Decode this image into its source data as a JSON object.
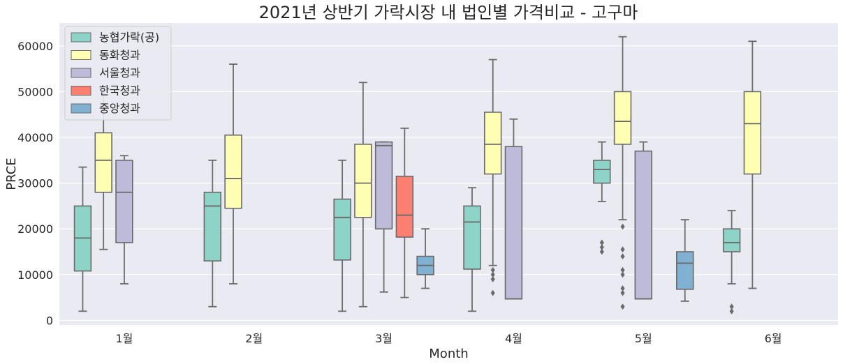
{
  "chart_data": {
    "type": "box",
    "title": "2021년 상반기 가락시장 내 법인별 가격비교 - 고구마",
    "xlabel": "Month",
    "ylabel": "PRCE",
    "categories": [
      "1월",
      "2월",
      "3월",
      "4월",
      "5월",
      "6월"
    ],
    "yticks": [
      0,
      10000,
      20000,
      30000,
      40000,
      50000,
      60000
    ],
    "ylim": [
      -1000,
      65000
    ],
    "grid": true,
    "legend_position": "top-left",
    "colors": {
      "background": "#eaeaf2",
      "grid": "#ffffff",
      "edge": "#6a6a6a"
    },
    "series": [
      {
        "name": "농협가락(공)",
        "color": "#8dd3c7",
        "boxes": [
          {
            "category": "1월",
            "whislo": 2000,
            "q1": 10800,
            "med": 18000,
            "q3": 25000,
            "whishi": 33500,
            "fliers": []
          },
          {
            "category": "2월",
            "whislo": 3000,
            "q1": 13000,
            "med": 25000,
            "q3": 28000,
            "whishi": 35000,
            "fliers": []
          },
          {
            "category": "3월",
            "whislo": 2000,
            "q1": 13200,
            "med": 22500,
            "q3": 26500,
            "whishi": 35000,
            "fliers": []
          },
          {
            "category": "4월",
            "whislo": 2000,
            "q1": 11200,
            "med": 21500,
            "q3": 25000,
            "whishi": 29000,
            "fliers": []
          },
          {
            "category": "5월",
            "whislo": 26000,
            "q1": 30000,
            "med": 33000,
            "q3": 35000,
            "whishi": 39000,
            "fliers": [
              15000,
              16000,
              17000
            ]
          },
          {
            "category": "6월",
            "whislo": 8000,
            "q1": 15000,
            "med": 17000,
            "q3": 20000,
            "whishi": 24000,
            "fliers": [
              2000,
              3000
            ]
          }
        ]
      },
      {
        "name": "동화청과",
        "color": "#ffffb3",
        "boxes": [
          {
            "category": "1월",
            "whislo": 15500,
            "q1": 28000,
            "med": 35000,
            "q3": 41000,
            "whishi": 51000,
            "fliers": []
          },
          {
            "category": "2월",
            "whislo": 8000,
            "q1": 24500,
            "med": 31000,
            "q3": 40500,
            "whishi": 56000,
            "fliers": []
          },
          {
            "category": "3월",
            "whislo": 3000,
            "q1": 22500,
            "med": 30000,
            "q3": 38500,
            "whishi": 52000,
            "fliers": []
          },
          {
            "category": "4월",
            "whislo": 12000,
            "q1": 32000,
            "med": 38500,
            "q3": 45500,
            "whishi": 57000,
            "fliers": [
              6000,
              9000,
              10000,
              11000
            ]
          },
          {
            "category": "5월",
            "whislo": 22000,
            "q1": 38500,
            "med": 43500,
            "q3": 50000,
            "whishi": 62000,
            "fliers": [
              3000,
              6000,
              7000,
              10000,
              11000,
              14000,
              15500,
              20500
            ]
          },
          {
            "category": "6월",
            "whislo": 7000,
            "q1": 32000,
            "med": 43000,
            "q3": 50000,
            "whishi": 61000,
            "fliers": []
          }
        ]
      },
      {
        "name": "서울청과",
        "color": "#bebada",
        "boxes": [
          {
            "category": "1월",
            "whislo": 8000,
            "q1": 17000,
            "med": 28000,
            "q3": 35000,
            "whishi": 36000,
            "fliers": []
          },
          {
            "category": "2월",
            "whislo": null,
            "q1": null,
            "med": null,
            "q3": null,
            "whishi": null,
            "fliers": []
          },
          {
            "category": "3월",
            "whislo": 6200,
            "q1": 20000,
            "med": 38200,
            "q3": 39000,
            "whishi": 39000,
            "fliers": []
          },
          {
            "category": "4월",
            "whislo": 4700,
            "q1": 4700,
            "med": 4700,
            "q3": 38000,
            "whishi": 44000,
            "fliers": []
          },
          {
            "category": "5월",
            "whislo": 4700,
            "q1": 4700,
            "med": 4700,
            "q3": 37000,
            "whishi": 39000,
            "fliers": []
          },
          {
            "category": "6월",
            "whislo": null,
            "q1": null,
            "med": null,
            "q3": null,
            "whishi": null,
            "fliers": []
          }
        ]
      },
      {
        "name": "한국청과",
        "color": "#fb8072",
        "boxes": [
          {
            "category": "1월",
            "whislo": null,
            "q1": null,
            "med": null,
            "q3": null,
            "whishi": null,
            "fliers": []
          },
          {
            "category": "2월",
            "whislo": null,
            "q1": null,
            "med": null,
            "q3": null,
            "whishi": null,
            "fliers": []
          },
          {
            "category": "3월",
            "whislo": 5000,
            "q1": 18200,
            "med": 23000,
            "q3": 31500,
            "whishi": 42000,
            "fliers": []
          },
          {
            "category": "4월",
            "whislo": null,
            "q1": null,
            "med": null,
            "q3": null,
            "whishi": null,
            "fliers": []
          },
          {
            "category": "5월",
            "whislo": null,
            "q1": null,
            "med": null,
            "q3": null,
            "whishi": null,
            "fliers": []
          },
          {
            "category": "6월",
            "whislo": null,
            "q1": null,
            "med": null,
            "q3": null,
            "whishi": null,
            "fliers": []
          }
        ]
      },
      {
        "name": "중앙청과",
        "color": "#80b1d3",
        "boxes": [
          {
            "category": "1월",
            "whislo": null,
            "q1": null,
            "med": null,
            "q3": null,
            "whishi": null,
            "fliers": []
          },
          {
            "category": "2월",
            "whislo": null,
            "q1": null,
            "med": null,
            "q3": null,
            "whishi": null,
            "fliers": []
          },
          {
            "category": "3월",
            "whislo": 7000,
            "q1": 10000,
            "med": 12000,
            "q3": 14000,
            "whishi": 20000,
            "fliers": []
          },
          {
            "category": "4월",
            "whislo": null,
            "q1": null,
            "med": null,
            "q3": null,
            "whishi": null,
            "fliers": []
          },
          {
            "category": "5월",
            "whislo": 4200,
            "q1": 6800,
            "med": 12500,
            "q3": 15000,
            "whishi": 22000,
            "fliers": []
          },
          {
            "category": "6월",
            "whislo": null,
            "q1": null,
            "med": null,
            "q3": null,
            "whishi": null,
            "fliers": []
          }
        ]
      }
    ]
  }
}
